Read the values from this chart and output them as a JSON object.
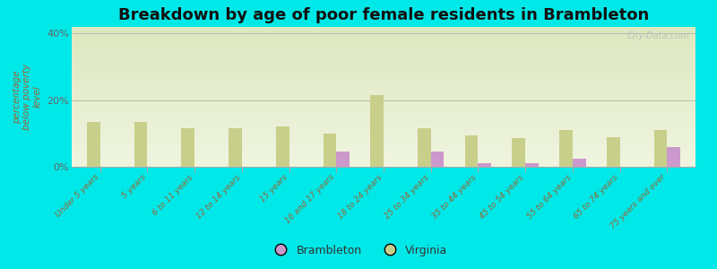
{
  "title": "Breakdown by age of poor female residents in Brambleton",
  "ylabel": "percentage\nbelow poverty\nlevel",
  "categories": [
    "Under 5 years",
    "5 years",
    "6 to 11 years",
    "12 to 14 years",
    "15 years",
    "16 and 17 years",
    "18 to 24 years",
    "25 to 34 years",
    "35 to 44 years",
    "45 to 54 years",
    "55 to 64 years",
    "65 to 74 years",
    "75 years and over"
  ],
  "brambleton_values": [
    0,
    0,
    0,
    0,
    0,
    4.5,
    0,
    4.5,
    1.2,
    1.0,
    2.5,
    0,
    6.0
  ],
  "virginia_values": [
    13.5,
    13.5,
    11.5,
    11.5,
    12.0,
    10.0,
    21.5,
    11.5,
    9.5,
    8.5,
    11.0,
    9.0,
    11.0
  ],
  "brambleton_color": "#cc99cc",
  "virginia_color": "#c8cf8a",
  "bg_top_color": "#dde8c0",
  "bg_bottom_color": "#f0f5e0",
  "outer_bg": "#00e8e8",
  "ylim": [
    0,
    42
  ],
  "yticks": [
    0,
    20,
    40
  ],
  "ytick_labels": [
    "0%",
    "20%",
    "40%"
  ],
  "bar_width": 0.28,
  "title_fontsize": 13,
  "tick_label_fontsize": 6.5,
  "ylabel_fontsize": 7.5,
  "watermark": "City-Data.com",
  "legend_labels": [
    "Brambleton",
    "Virginia"
  ]
}
